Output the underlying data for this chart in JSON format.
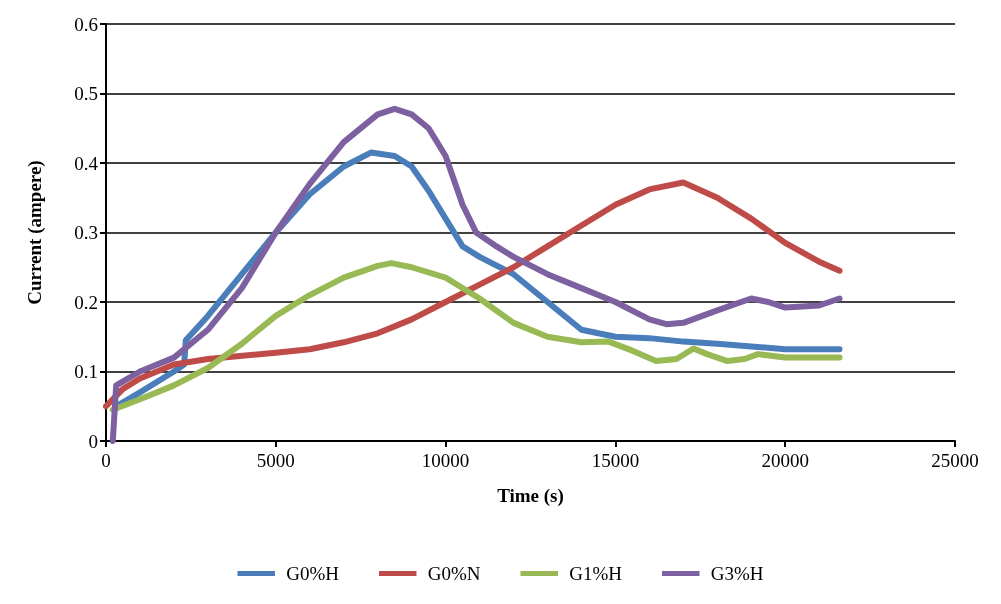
{
  "chart_data": {
    "type": "line",
    "xlabel": "Time (s)",
    "ylabel": "Current (ampere)",
    "xlim": [
      0,
      25000
    ],
    "xticks": [
      0,
      5000,
      10000,
      15000,
      20000,
      25000
    ],
    "ylim": [
      0,
      0.6
    ],
    "yticks": [
      0,
      0.1,
      0.2,
      0.3,
      0.4,
      0.5,
      0.6
    ],
    "grid": "y",
    "legend": "bottom",
    "marker": "none",
    "line_style": "solid",
    "series": [
      {
        "name": "G0%H",
        "color": "#4a7ebb",
        "x": [
          300,
          1000,
          2000,
          2300,
          2350,
          3000,
          4000,
          5000,
          6000,
          7000,
          7800,
          8500,
          9000,
          9500,
          10000,
          10500,
          11000,
          12000,
          13000,
          14000,
          15000,
          16000,
          17000,
          18000,
          19000,
          20000,
          21600
        ],
        "values": [
          0.05,
          0.07,
          0.1,
          0.11,
          0.145,
          0.18,
          0.24,
          0.3,
          0.355,
          0.395,
          0.415,
          0.41,
          0.395,
          0.36,
          0.32,
          0.28,
          0.265,
          0.24,
          0.2,
          0.16,
          0.15,
          0.148,
          0.143,
          0.14,
          0.136,
          0.132,
          0.132
        ]
      },
      {
        "name": "G0%N",
        "color": "#be4b48",
        "x": [
          0,
          500,
          1000,
          2000,
          3000,
          5000,
          6000,
          7000,
          8000,
          9000,
          10000,
          11000,
          12000,
          13000,
          14000,
          15000,
          16000,
          17000,
          18000,
          19000,
          20000,
          21000,
          21600
        ],
        "values": [
          0.05,
          0.075,
          0.09,
          0.11,
          0.118,
          0.127,
          0.132,
          0.142,
          0.155,
          0.175,
          0.2,
          0.225,
          0.25,
          0.28,
          0.31,
          0.34,
          0.362,
          0.372,
          0.35,
          0.32,
          0.285,
          0.258,
          0.245
        ]
      },
      {
        "name": "G1%H",
        "color": "#98b954",
        "x": [
          200,
          1000,
          2000,
          3000,
          4000,
          5000,
          6000,
          7000,
          8000,
          8400,
          9000,
          10000,
          11000,
          12000,
          13000,
          14000,
          14800,
          15500,
          16200,
          16800,
          17300,
          17700,
          18300,
          18800,
          19200,
          20000,
          21600
        ],
        "values": [
          0.045,
          0.06,
          0.08,
          0.105,
          0.14,
          0.18,
          0.21,
          0.235,
          0.252,
          0.256,
          0.25,
          0.235,
          0.205,
          0.17,
          0.15,
          0.142,
          0.143,
          0.13,
          0.115,
          0.118,
          0.133,
          0.125,
          0.115,
          0.118,
          0.125,
          0.12,
          0.12
        ]
      },
      {
        "name": "G3%H",
        "color": "#7d60a0",
        "x": [
          200,
          250,
          300,
          1000,
          2000,
          3000,
          4000,
          5000,
          6000,
          7000,
          8000,
          8500,
          9000,
          9500,
          10000,
          10500,
          10900,
          11500,
          12000,
          13000,
          14000,
          15000,
          16000,
          16500,
          17000,
          18000,
          19000,
          19500,
          20000,
          21000,
          21600
        ],
        "values": [
          0,
          0.04,
          0.08,
          0.1,
          0.12,
          0.16,
          0.22,
          0.3,
          0.37,
          0.43,
          0.47,
          0.478,
          0.47,
          0.45,
          0.41,
          0.34,
          0.3,
          0.28,
          0.265,
          0.24,
          0.22,
          0.2,
          0.175,
          0.168,
          0.17,
          0.188,
          0.205,
          0.2,
          0.192,
          0.195,
          0.205
        ]
      }
    ]
  }
}
